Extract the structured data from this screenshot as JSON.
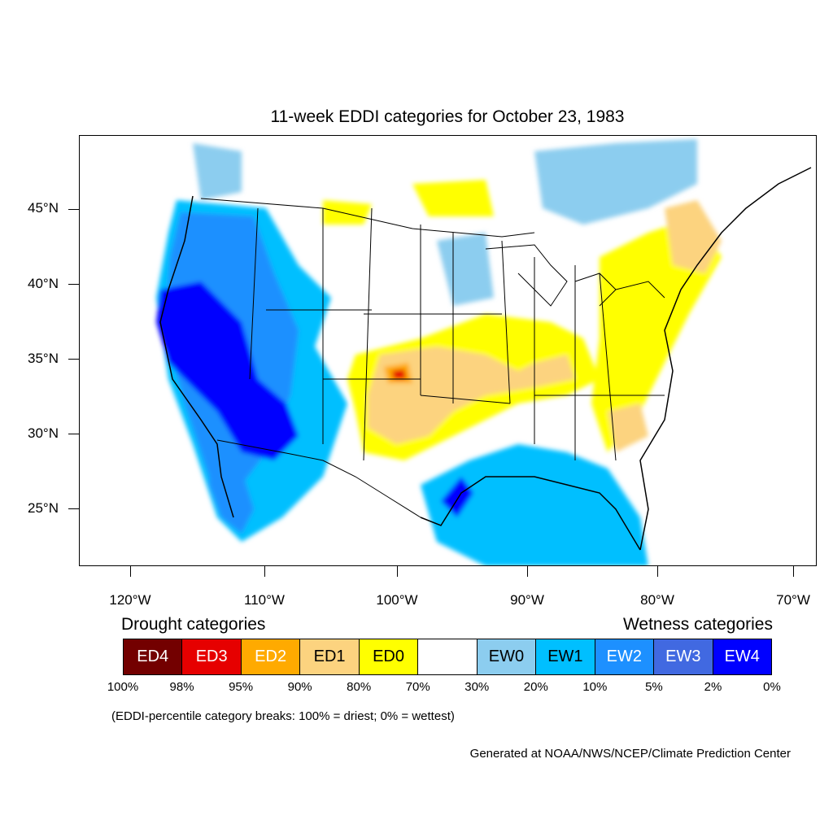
{
  "title": "11-week EDDI categories for October 23, 1983",
  "map": {
    "y_labels": [
      "45°N",
      "40°N",
      "35°N",
      "30°N",
      "25°N"
    ],
    "x_labels": [
      "120°W",
      "110°W",
      "100°W",
      "90°W",
      "80°W",
      "70°W"
    ]
  },
  "legend": {
    "drought_heading": "Drought categories",
    "wetness_heading": "Wetness categories",
    "categories": [
      {
        "label": "ED4",
        "color": "#730000",
        "text_color": "#ffffff"
      },
      {
        "label": "ED3",
        "color": "#e60000",
        "text_color": "#ffffff"
      },
      {
        "label": "ED2",
        "color": "#ffaa00",
        "text_color": "#ffffff"
      },
      {
        "label": "ED1",
        "color": "#fcd37f",
        "text_color": "#000000"
      },
      {
        "label": "ED0",
        "color": "#ffff00",
        "text_color": "#000000"
      },
      {
        "label": "",
        "color": "#ffffff",
        "text_color": "#000000"
      },
      {
        "label": "EW0",
        "color": "#8ccdef",
        "text_color": "#000000"
      },
      {
        "label": "EW1",
        "color": "#00bfff",
        "text_color": "#000000"
      },
      {
        "label": "EW2",
        "color": "#1d90ff",
        "text_color": "#ffffff"
      },
      {
        "label": "EW3",
        "color": "#4169e1",
        "text_color": "#ffffff"
      },
      {
        "label": "EW4",
        "color": "#0000ff",
        "text_color": "#ffffff"
      }
    ],
    "percentiles": [
      "100%",
      "98%",
      "95%",
      "90%",
      "80%",
      "70%",
      "30%",
      "20%",
      "10%",
      "5%",
      "2%",
      "0%"
    ]
  },
  "note": "(EDDI-percentile category breaks: 100% = driest; 0% = wettest)",
  "credit": "Generated at NOAA/NWS/NCEP/Climate Prediction Center"
}
